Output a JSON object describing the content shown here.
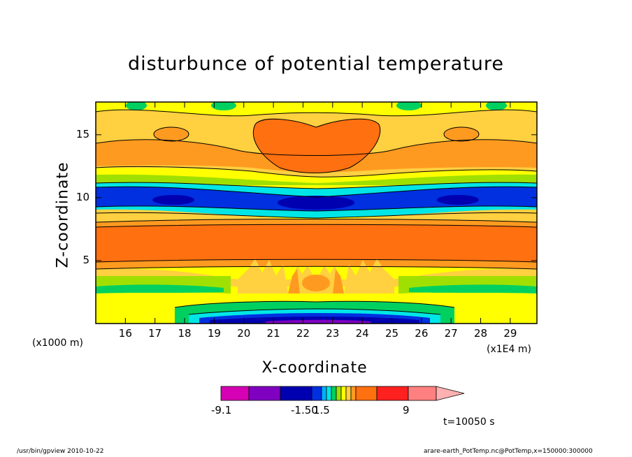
{
  "chart_data": {
    "type": "heatmap",
    "title": "disturbunce of potential temperature",
    "xlabel": "X-coordinate",
    "ylabel": "Z-coordinate",
    "x_multiplier": "(x1E4 m)",
    "y_multiplier": "(x1000 m)",
    "x_ticks": [
      "16",
      "17",
      "18",
      "19",
      "20",
      "21",
      "22",
      "23",
      "24",
      "25",
      "26",
      "27",
      "28",
      "29"
    ],
    "y_ticks": [
      "5",
      "10",
      "15"
    ],
    "xlim": [
      15.0,
      29.9
    ],
    "ylim": [
      0,
      17.6
    ],
    "colorbar": {
      "labels": [
        "-9.1",
        "-1.50",
        "1.5",
        "9"
      ],
      "colors": [
        "#d600b4",
        "#8000c0",
        "#0000b0",
        "#0030e0",
        "#00b0ff",
        "#00e6e6",
        "#00d060",
        "#a0e000",
        "#ffff00",
        "#ffd040",
        "#ff9a20",
        "#ff7010",
        "#ff2020",
        "#ff8080",
        "#ffb0b0"
      ]
    },
    "time_label": "t=10050 s",
    "field_bands": [
      {
        "z": [
          0,
          0.5
        ],
        "value": "-3 to -9 (deep blue/purple, centered x≈20–25)"
      },
      {
        "z": [
          0.5,
          2
        ],
        "value": "yellow / light green near surface"
      },
      {
        "z": [
          2,
          4.5
        ],
        "value": "orange/yellow convective plumes at x≈21.5–24"
      },
      {
        "z": [
          4.5,
          8
        ],
        "value": "orange (positive ~3–5)"
      },
      {
        "z": [
          8,
          9.5
        ],
        "value": "yellow"
      },
      {
        "z": [
          9.5,
          11.5
        ],
        "value": "blue/cyan negative band"
      },
      {
        "z": [
          11.5,
          13
        ],
        "value": "green/yellow"
      },
      {
        "z": [
          13,
          17.6
        ],
        "value": "orange with dome at x≈21–24"
      }
    ]
  },
  "footer": {
    "left": "/usr/bin/gpview   2010-10-22",
    "right": "arare-earth_PotTemp.nc@PotTemp,x=150000:300000"
  }
}
